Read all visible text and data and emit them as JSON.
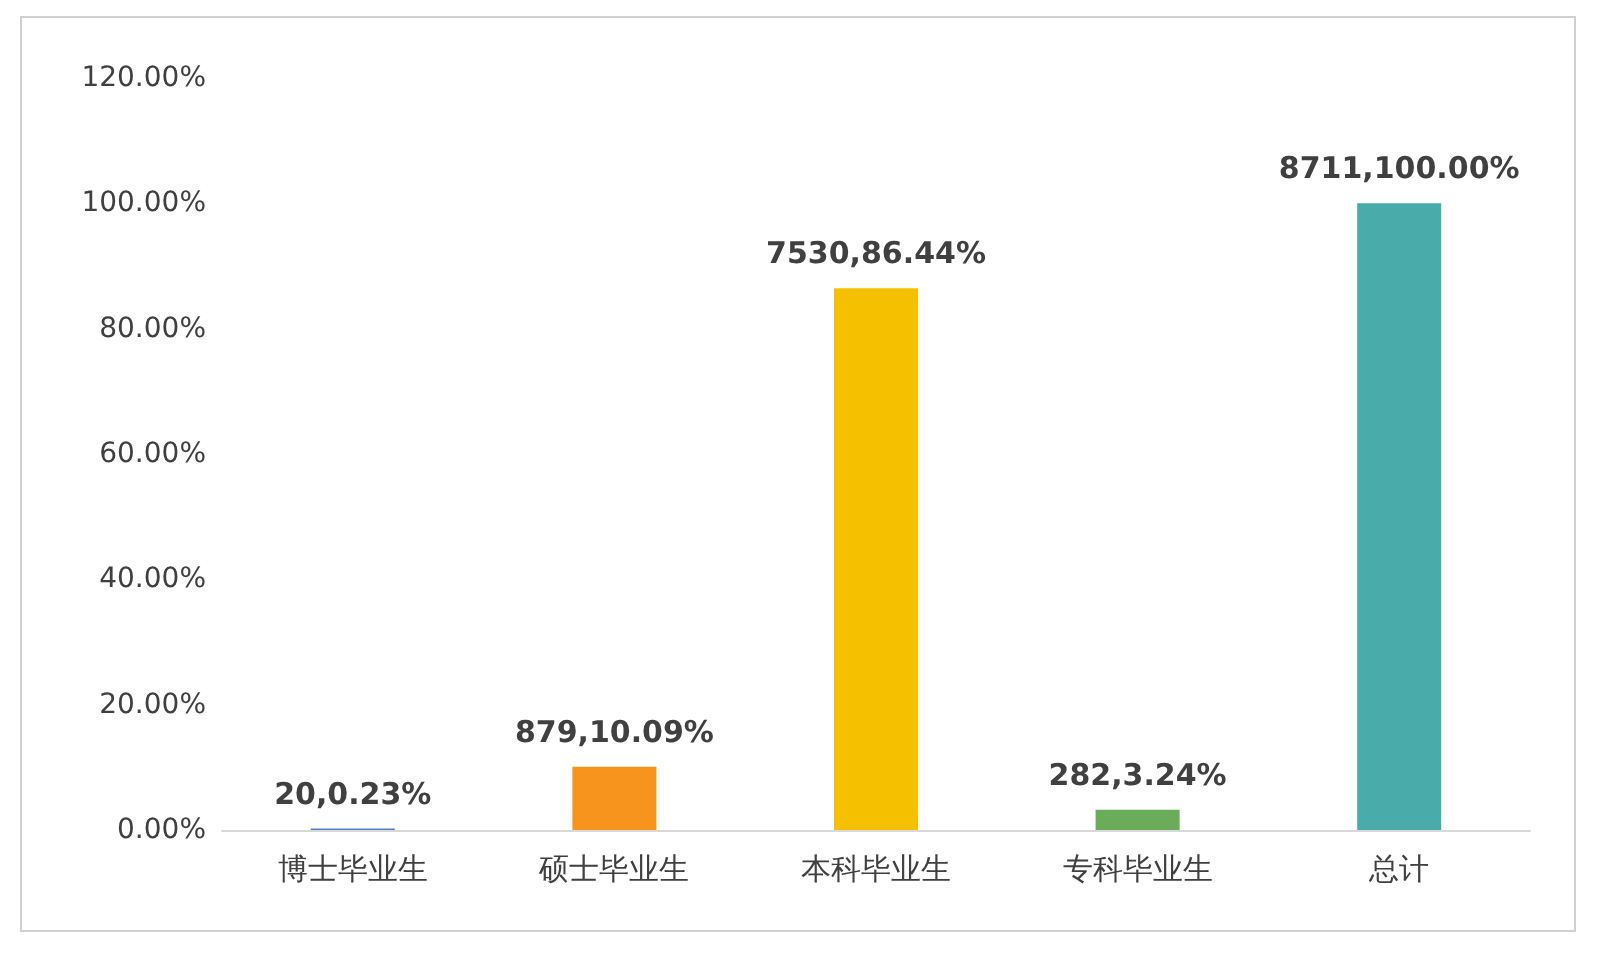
{
  "chart_data": {
    "type": "bar",
    "categories": [
      "博士毕业生",
      "硕士毕业生",
      "本科毕业生",
      "专科毕业生",
      "总计"
    ],
    "values": [
      0.23,
      10.09,
      86.44,
      3.24,
      100
    ],
    "colors": [
      "#4f81bd",
      "#f7941d",
      "#f5c000",
      "#6aac5a",
      "#4aabab"
    ],
    "value_labels": [
      "20,0.23%",
      "879,10.09%",
      "7530,86.44%",
      "282,3.24%",
      "8711,100.00%"
    ],
    "ylim": [
      0,
      120
    ],
    "yticks": [
      {
        "value": 0,
        "label": "0.00%"
      },
      {
        "value": 20,
        "label": "20.00%"
      },
      {
        "value": 40,
        "label": "40.00%"
      },
      {
        "value": 60,
        "label": "60.00%"
      },
      {
        "value": 80,
        "label": "80.00%"
      },
      {
        "value": 100,
        "label": "100.00%"
      },
      {
        "value": 120,
        "label": "120.00%"
      }
    ],
    "grid": false
  }
}
